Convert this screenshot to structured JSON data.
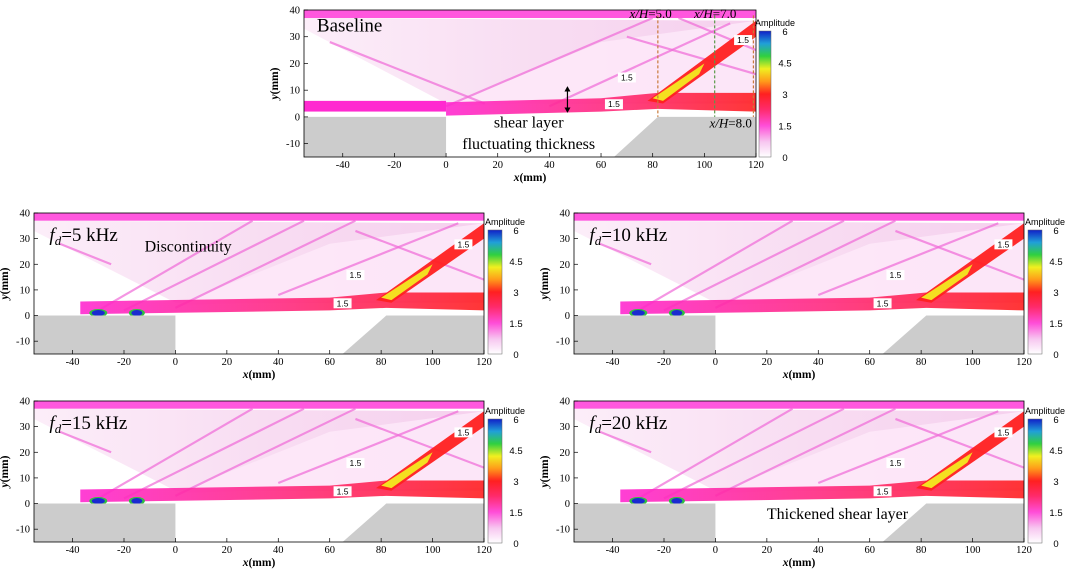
{
  "chart_data": [
    {
      "type": "heatmap",
      "id": "baseline",
      "title": "Baseline",
      "xlabel": "x(mm)",
      "ylabel": "y(mm)",
      "xlim": [
        -55,
        120
      ],
      "ylim": [
        -15,
        40
      ],
      "xticks": [
        -40,
        -20,
        0,
        20,
        40,
        60,
        80,
        100,
        120
      ],
      "yticks": [
        -10,
        0,
        10,
        20,
        30,
        40
      ],
      "colorbar": {
        "label": "Amplitude",
        "range": [
          0,
          6
        ],
        "ticks": [
          "6",
          "4.5",
          "3",
          "1.5",
          "0"
        ]
      },
      "contour_labels": [
        "1.5",
        "1.5",
        "1.5"
      ],
      "annotations": {
        "xh_lines": [
          {
            "label_a": "x/H",
            "label_b": "=5.0",
            "x": 82,
            "color": "#c87a3a"
          },
          {
            "label_a": "x/H",
            "label_b": "=7.0",
            "x": 104,
            "color": "#5a9a4a"
          },
          {
            "label_a": "x/H",
            "label_b": "=8.0",
            "x": 119,
            "color": "#c87a3a"
          }
        ],
        "note_line1": "shear layer",
        "note_line2": "fluctuating thickness"
      }
    },
    {
      "type": "heatmap",
      "id": "fd5",
      "title_sym": "f",
      "title_sub": "d",
      "title_val": "=5 kHz",
      "xlabel": "x(mm)",
      "ylabel": "y(mm)",
      "xlim": [
        -55,
        120
      ],
      "ylim": [
        -15,
        40
      ],
      "xticks": [
        -40,
        -20,
        0,
        20,
        40,
        60,
        80,
        100,
        120
      ],
      "yticks": [
        -10,
        0,
        10,
        20,
        30,
        40
      ],
      "colorbar": {
        "label": "Amplitude",
        "range": [
          0,
          6
        ],
        "ticks": [
          "6",
          "4.5",
          "3",
          "1.5",
          "0"
        ]
      },
      "contour_labels": [
        "1.5",
        "1.5",
        "1.5"
      ],
      "note": "Discontinuity"
    },
    {
      "type": "heatmap",
      "id": "fd10",
      "title_sym": "f",
      "title_sub": "d",
      "title_val": "=10 kHz",
      "xlabel": "x(mm)",
      "ylabel": "y(mm)",
      "xlim": [
        -55,
        120
      ],
      "ylim": [
        -15,
        40
      ],
      "xticks": [
        -40,
        -20,
        0,
        20,
        40,
        60,
        80,
        100,
        120
      ],
      "yticks": [
        -10,
        0,
        10,
        20,
        30,
        40
      ],
      "colorbar": {
        "label": "Amplitude",
        "range": [
          0,
          6
        ],
        "ticks": [
          "6",
          "4.5",
          "3",
          "1.5",
          "0"
        ]
      },
      "contour_labels": [
        "1.5",
        "1.5",
        "1.5"
      ]
    },
    {
      "type": "heatmap",
      "id": "fd15",
      "title_sym": "f",
      "title_sub": "d",
      "title_val": "=15 kHz",
      "xlabel": "x(mm)",
      "ylabel": "y(mm)",
      "xlim": [
        -55,
        120
      ],
      "ylim": [
        -15,
        40
      ],
      "xticks": [
        -40,
        -20,
        0,
        20,
        40,
        60,
        80,
        100,
        120
      ],
      "yticks": [
        -10,
        0,
        10,
        20,
        30,
        40
      ],
      "colorbar": {
        "label": "Amplitude",
        "range": [
          0,
          6
        ],
        "ticks": [
          "6",
          "4.5",
          "3",
          "1.5",
          "0"
        ]
      },
      "contour_labels": [
        "1.5",
        "1.5",
        "1.5"
      ]
    },
    {
      "type": "heatmap",
      "id": "fd20",
      "title_sym": "f",
      "title_sub": "d",
      "title_val": "=20 kHz",
      "xlabel": "x(mm)",
      "ylabel": "y(mm)",
      "xlim": [
        -55,
        120
      ],
      "ylim": [
        -15,
        40
      ],
      "xticks": [
        -40,
        -20,
        0,
        20,
        40,
        60,
        80,
        100,
        120
      ],
      "yticks": [
        -10,
        0,
        10,
        20,
        30,
        40
      ],
      "colorbar": {
        "label": "Amplitude",
        "range": [
          0,
          6
        ],
        "ticks": [
          "6",
          "4.5",
          "3",
          "1.5",
          "0"
        ]
      },
      "contour_labels": [
        "1.5",
        "1.5",
        "1.5"
      ],
      "note": "Thickened shear layer"
    }
  ]
}
